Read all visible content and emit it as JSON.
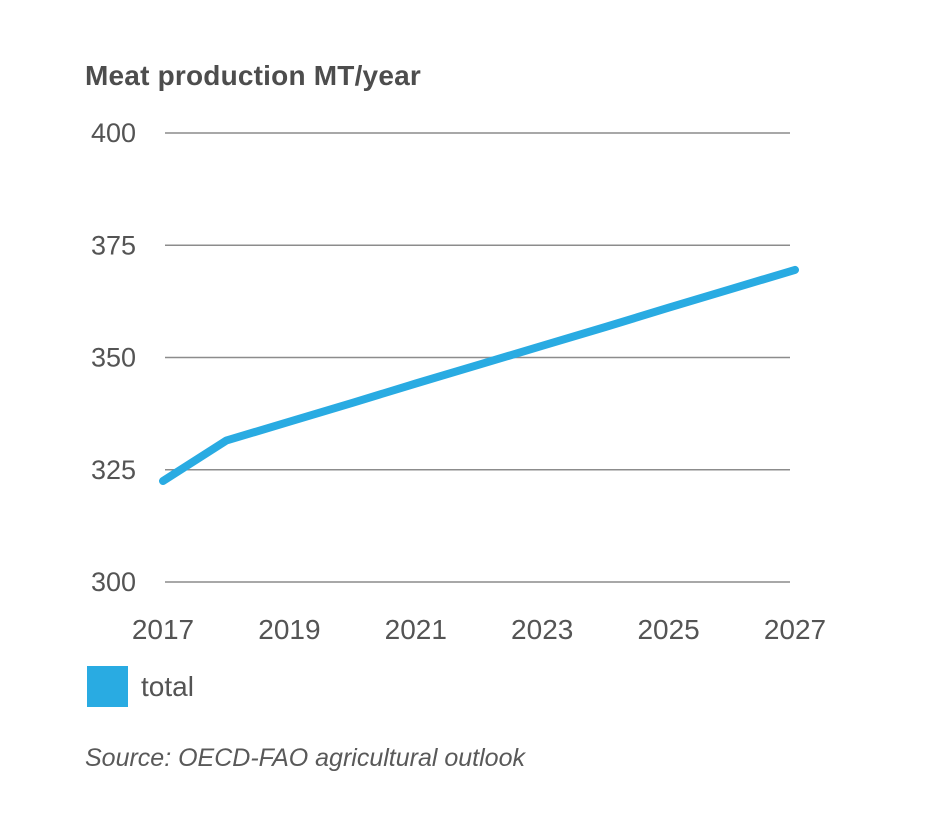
{
  "chart_data": {
    "type": "line",
    "title": "Meat production MT/year",
    "xlabel": "",
    "ylabel": "",
    "x": [
      2017,
      2018,
      2019,
      2020,
      2021,
      2022,
      2023,
      2024,
      2025,
      2026,
      2027
    ],
    "series": [
      {
        "name": "total",
        "color": "#29ABE2",
        "values": [
          322.5,
          331.5,
          335.7,
          339.9,
          344.2,
          348.4,
          352.6,
          356.8,
          361.1,
          365.3,
          369.5
        ]
      }
    ],
    "xticks": [
      2017,
      2019,
      2021,
      2023,
      2025,
      2027
    ],
    "yticks": [
      300,
      325,
      350,
      375,
      400
    ],
    "ylim": [
      300,
      400
    ],
    "xlim": [
      2017,
      2027
    ],
    "grid": "horizontal-only",
    "legend": {
      "position": "bottom-left",
      "entries": [
        {
          "label": "total",
          "color": "#29ABE2"
        }
      ]
    },
    "source": "Source: OECD-FAO agricultural outlook"
  },
  "colors": {
    "background": "#ffffff",
    "accent": "#29ABE2",
    "title_text": "#4d4d4d",
    "axis_text": "#545454",
    "gridline": "#8c8c8c",
    "source_text": "#595959"
  }
}
